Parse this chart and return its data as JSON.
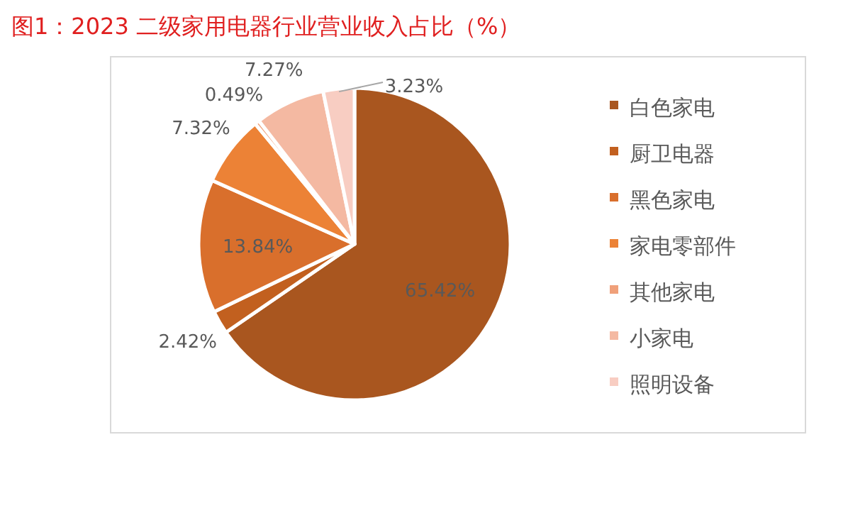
{
  "chart_data": {
    "type": "pie",
    "title": "图1：2023 二级家用电器行业营业收入占比（%）",
    "categories": [
      "白色家电",
      "厨卫电器",
      "黑色家电",
      "家电零部件",
      "其他家电",
      "小家电",
      "照明设备"
    ],
    "values": [
      65.42,
      2.42,
      13.84,
      7.32,
      0.49,
      7.27,
      3.23
    ],
    "value_labels": [
      "65.42%",
      "2.42%",
      "13.84%",
      "7.32%",
      "0.49%",
      "7.27%",
      "3.23%"
    ],
    "colors": [
      "#a9561f",
      "#c2601f",
      "#d96f2c",
      "#ec8236",
      "#f0a07a",
      "#f4b9a2",
      "#f8cdc2"
    ],
    "legend": "right"
  }
}
